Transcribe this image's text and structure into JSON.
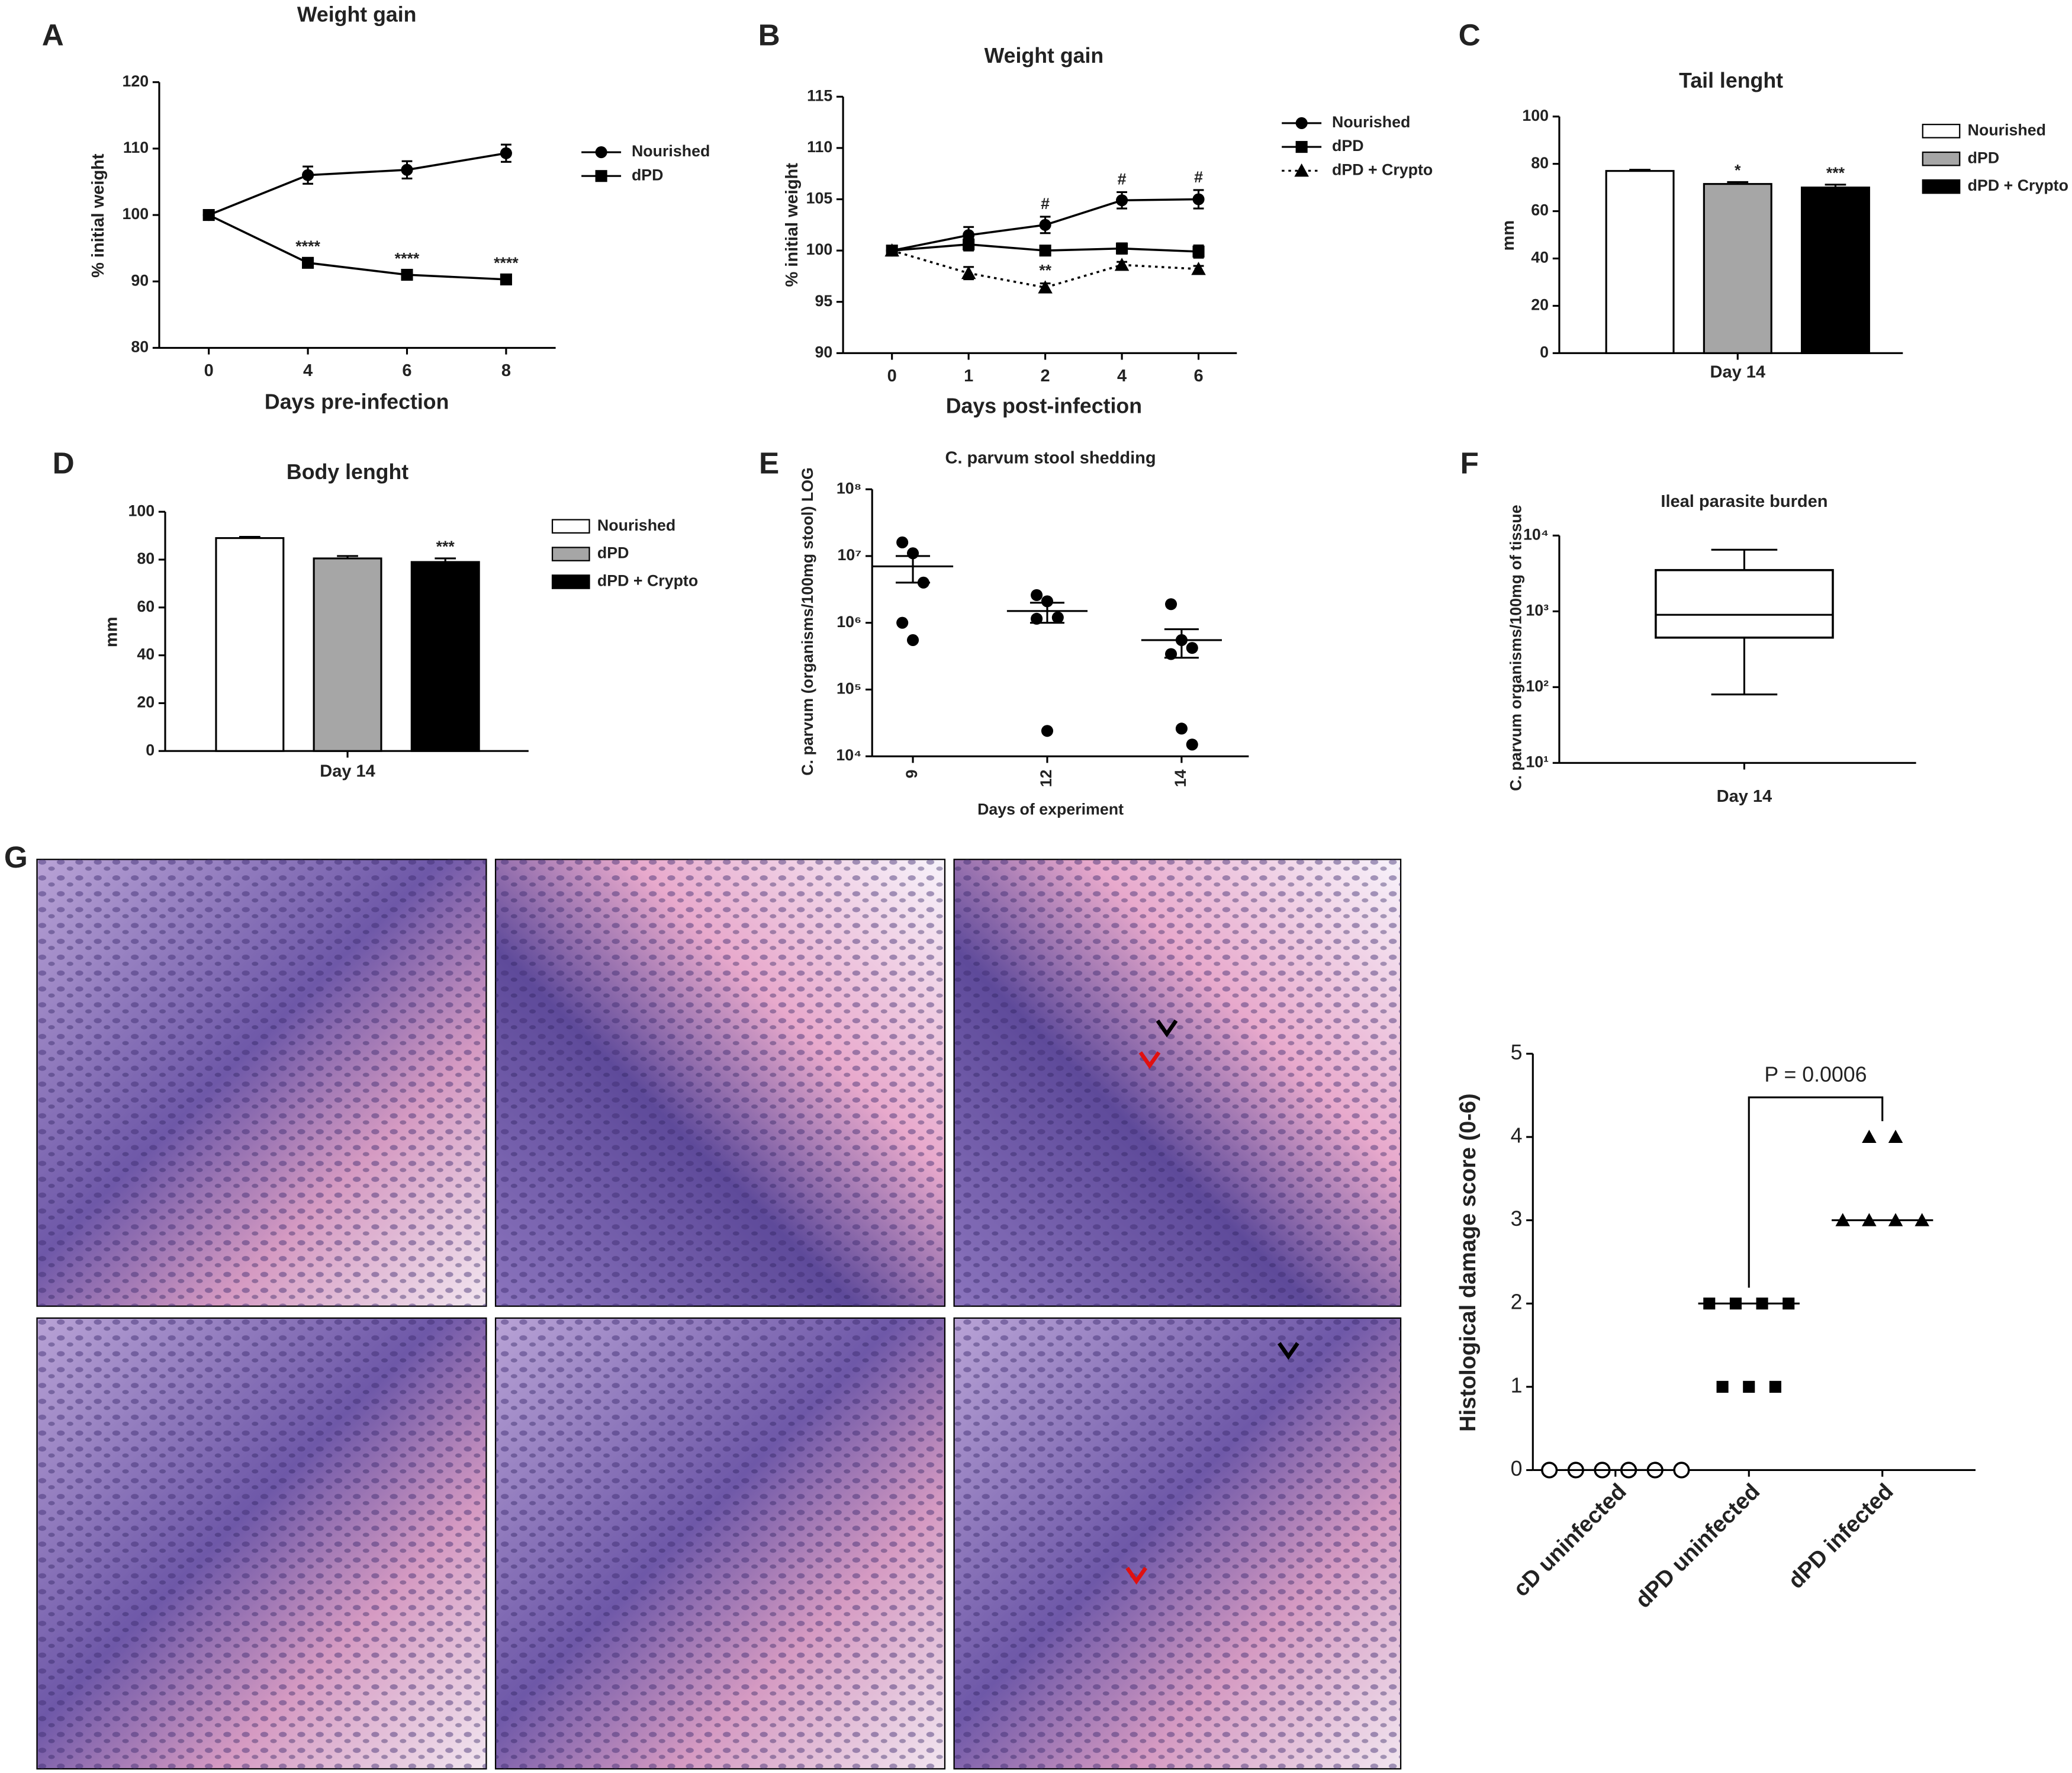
{
  "chart_data": [
    {
      "panel": "A",
      "type": "line",
      "title": "Weight gain",
      "x_label": "Days pre-infection",
      "y_label": "% initial weight",
      "categories": [
        "0",
        "4",
        "6",
        "8"
      ],
      "ylim": [
        80,
        120
      ],
      "yticks": [
        80,
        90,
        100,
        110,
        120
      ],
      "series": [
        {
          "name": "Nourished",
          "color": "#000000",
          "marker": "circle",
          "values": [
            100,
            106,
            106.8,
            109.3
          ],
          "errors": [
            0,
            1.3,
            1.3,
            1.3
          ]
        },
        {
          "name": "dPD",
          "color": "#000000",
          "marker": "square",
          "values": [
            100,
            92.8,
            91,
            90.3
          ],
          "errors": [
            0,
            0.5,
            0.5,
            0.5
          ],
          "annotations": [
            null,
            "****",
            "****",
            "****"
          ]
        }
      ]
    },
    {
      "panel": "B",
      "type": "line",
      "title": "Weight gain",
      "x_label": "Days post-infection",
      "y_label": "% initial weight",
      "categories": [
        "0",
        "1",
        "2",
        "4",
        "6"
      ],
      "ylim": [
        90,
        115
      ],
      "yticks": [
        90,
        95,
        100,
        105,
        110,
        115
      ],
      "series": [
        {
          "name": "Nourished",
          "color": "#000000",
          "marker": "circle",
          "values": [
            100,
            101.5,
            102.5,
            104.9,
            105
          ],
          "errors": [
            0,
            0.8,
            0.8,
            0.8,
            0.9
          ],
          "annotations": [
            null,
            null,
            "#",
            "#",
            "#"
          ]
        },
        {
          "name": "dPD",
          "color": "#000000",
          "marker": "square",
          "values": [
            100,
            100.6,
            100,
            100.2,
            99.9
          ],
          "errors": [
            0,
            0.6,
            0.4,
            0.5,
            0.6
          ]
        },
        {
          "name": "dPD + Crypto",
          "color": "#000000",
          "marker": "triangle",
          "line_style": "dotted",
          "values": [
            100,
            97.8,
            96.4,
            98.6,
            98.2
          ],
          "errors": [
            0,
            0.6,
            0.4,
            0.3,
            0.3
          ],
          "annotations": [
            null,
            null,
            "**",
            null,
            null
          ]
        }
      ]
    },
    {
      "panel": "C",
      "type": "bar",
      "title": "Tail lenght",
      "y_label": "mm",
      "categories": [
        "Day 14"
      ],
      "ylim": [
        0,
        100
      ],
      "yticks": [
        0,
        20,
        40,
        60,
        80,
        100
      ],
      "series": [
        {
          "name": "Nourished",
          "color": "#ffffff",
          "values": [
            77
          ],
          "errors": [
            0.5
          ]
        },
        {
          "name": "dPD",
          "color": "#a6a6a6",
          "values": [
            71.5
          ],
          "errors": [
            0.8
          ],
          "annotations": [
            "*"
          ]
        },
        {
          "name": "dPD + Crypto",
          "color": "#000000",
          "values": [
            70
          ],
          "errors": [
            1.2
          ],
          "annotations": [
            "***"
          ]
        }
      ]
    },
    {
      "panel": "D",
      "type": "bar",
      "title": "Body lenght",
      "y_label": "mm",
      "categories": [
        "Day 14"
      ],
      "ylim": [
        0,
        100
      ],
      "yticks": [
        0,
        20,
        40,
        60,
        80,
        100
      ],
      "series": [
        {
          "name": "Nourished",
          "color": "#ffffff",
          "values": [
            89
          ],
          "errors": [
            0.5
          ]
        },
        {
          "name": "dPD",
          "color": "#a6a6a6",
          "values": [
            80.5
          ],
          "errors": [
            1
          ]
        },
        {
          "name": "dPD + Crypto",
          "color": "#000000",
          "values": [
            79
          ],
          "errors": [
            1.5
          ],
          "annotations": [
            "***"
          ]
        }
      ]
    },
    {
      "panel": "E",
      "type": "dot",
      "title": "C. parvum stool shedding",
      "x_label": "Days of experiment",
      "y_label": "C. parvum (organisms/100mg stool) LOG",
      "categories": [
        "9",
        "12",
        "14"
      ],
      "log_scale": true,
      "ylim": [
        10000,
        100000000
      ],
      "yticks": [
        {
          "value": 10000,
          "label": "10⁴"
        },
        {
          "value": 100000,
          "label": "10⁵"
        },
        {
          "value": 1000000,
          "label": "10⁶"
        },
        {
          "value": 10000000,
          "label": "10⁷"
        },
        {
          "value": 100000000,
          "label": "10⁸"
        }
      ],
      "marker": "circle",
      "color": "#000000",
      "points": [
        [
          16000000,
          11000000,
          4000000,
          1000000,
          550000
        ],
        [
          2600000,
          2100000,
          1200000,
          1150000,
          24000
        ],
        [
          1900000,
          550000,
          420000,
          340000,
          26000,
          15000
        ]
      ],
      "means": [
        7000000,
        1500000,
        550000
      ],
      "errors": [
        3000000,
        500000,
        250000
      ]
    },
    {
      "panel": "F",
      "type": "box",
      "title": "Ileal parasite burden",
      "y_label": "C. parvum organisms/100mg of tissue",
      "categories": [
        "Day 14"
      ],
      "log_scale": true,
      "ylim": [
        10,
        10000
      ],
      "yticks": [
        {
          "value": 10,
          "label": "10¹"
        },
        {
          "value": 100,
          "label": "10²"
        },
        {
          "value": 1000,
          "label": "10³"
        },
        {
          "value": 10000,
          "label": "10⁴"
        }
      ],
      "min": [
        80
      ],
      "q1": [
        450
      ],
      "median": [
        900
      ],
      "q3": [
        3500
      ],
      "max": [
        6500
      ]
    },
    {
      "panel": "G",
      "type": "dot",
      "y_label": "Histological damage score (0-6)",
      "categories": [
        "cD uninfected",
        "dPD uninfected",
        "dPD infected"
      ],
      "ylim": [
        0,
        5
      ],
      "yticks": [
        0,
        1,
        2,
        3,
        4,
        5
      ],
      "markers": [
        "circle-open",
        "square",
        "triangle"
      ],
      "color": "#000000",
      "points": [
        [
          0,
          0,
          0,
          0,
          0,
          0
        ],
        [
          2,
          2,
          2,
          2,
          1,
          1,
          1
        ],
        [
          4,
          4,
          3,
          3,
          3,
          3
        ]
      ],
      "medians": [
        0,
        2,
        3
      ],
      "annotation": "P = 0.0006",
      "annotation_between": [
        1,
        2
      ]
    }
  ]
}
